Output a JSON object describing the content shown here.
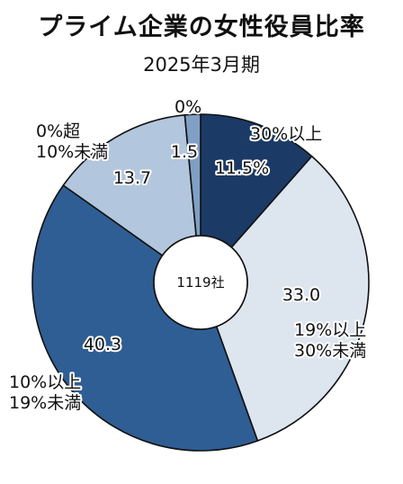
{
  "title": "プライム企業の女性役員比率",
  "subtitle": "2025年3月期",
  "chart_data": {
    "type": "pie",
    "title": "プライム企業の女性役員比率",
    "subtitle": "2025年3月期",
    "center_label": "1119社",
    "unit": "%",
    "categories": [
      "30%以上",
      "19%以上30%未満",
      "10%以上19%未満",
      "0%超10%未満",
      "0%"
    ],
    "category_lines": [
      [
        "30%以上"
      ],
      [
        "19%以上",
        "30%未満"
      ],
      [
        "10%以上",
        "19%未満"
      ],
      [
        "0%超",
        "10%未満"
      ],
      [
        "0%"
      ]
    ],
    "values": [
      11.5,
      33.0,
      40.3,
      13.7,
      1.5
    ],
    "value_labels": [
      "11.5%",
      "33.0",
      "40.3",
      "13.7",
      "1.5"
    ],
    "colors": [
      "#1b3a66",
      "#dde5ef",
      "#2f5e94",
      "#b2c6dd",
      "#7f9fc4"
    ],
    "legend": "none"
  }
}
